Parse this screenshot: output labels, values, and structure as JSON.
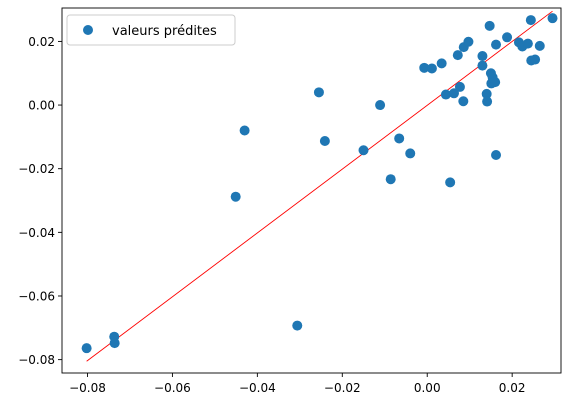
{
  "chart_data": {
    "type": "scatter",
    "title": "",
    "xlabel": "",
    "ylabel": "",
    "xlim": [
      -0.086,
      0.0315
    ],
    "ylim": [
      -0.0842,
      0.0305
    ],
    "xticks": [
      -0.08,
      -0.06,
      -0.04,
      -0.02,
      0.0,
      0.02
    ],
    "xtick_labels": [
      "−0.08",
      "−0.06",
      "−0.04",
      "−0.02",
      "0.00",
      "0.02"
    ],
    "yticks": [
      -0.08,
      -0.06,
      -0.04,
      -0.02,
      0.0,
      0.02
    ],
    "ytick_labels": [
      "−0.08",
      "−0.06",
      "−0.04",
      "−0.02",
      "0.00",
      "0.02"
    ],
    "grid": false,
    "legend": {
      "entries": [
        "valeurs prédites"
      ],
      "placement": "top-left"
    },
    "series": [
      {
        "name": "valeurs prédites",
        "type": "scatter",
        "color": "#1f77b4",
        "points": [
          [
            -0.0802,
            -0.0764
          ],
          [
            -0.0737,
            -0.0728
          ],
          [
            -0.0736,
            -0.0748
          ],
          [
            -0.0451,
            -0.0288
          ],
          [
            -0.043,
            -0.008
          ],
          [
            -0.0306,
            -0.0693
          ],
          [
            -0.0255,
            0.004
          ],
          [
            -0.0241,
            -0.0113
          ],
          [
            -0.015,
            -0.0142
          ],
          [
            -0.0111,
            0.0
          ],
          [
            -0.0086,
            -0.0233
          ],
          [
            -0.0066,
            -0.0105
          ],
          [
            -0.004,
            -0.0152
          ],
          [
            -0.0007,
            0.0117
          ],
          [
            0.0011,
            0.0115
          ],
          [
            0.0034,
            0.0131
          ],
          [
            0.0044,
            0.0033
          ],
          [
            0.0054,
            -0.0243
          ],
          [
            0.0063,
            0.0037
          ],
          [
            0.0072,
            0.0157
          ],
          [
            0.0077,
            0.0057
          ],
          [
            0.0086,
            0.0182
          ],
          [
            0.0085,
            0.0012
          ],
          [
            0.0097,
            0.0199
          ],
          [
            0.013,
            0.0154
          ],
          [
            0.013,
            0.0124
          ],
          [
            0.014,
            0.0035
          ],
          [
            0.0141,
            0.0011
          ],
          [
            0.0147,
            0.0249
          ],
          [
            0.015,
            0.01
          ],
          [
            0.0151,
            0.0068
          ],
          [
            0.0154,
            0.0087
          ],
          [
            0.016,
            0.0072
          ],
          [
            0.0162,
            0.019
          ],
          [
            0.0162,
            -0.0157
          ],
          [
            0.0188,
            0.0213
          ],
          [
            0.0216,
            0.0197
          ],
          [
            0.0224,
            0.0184
          ],
          [
            0.0237,
            0.0193
          ],
          [
            0.0244,
            0.0267
          ],
          [
            0.0245,
            0.014
          ],
          [
            0.0254,
            0.0143
          ],
          [
            0.0265,
            0.0186
          ],
          [
            0.0295,
            0.0273
          ]
        ]
      },
      {
        "name": "regression line",
        "type": "line",
        "color": "#ff0000",
        "points": [
          [
            -0.0802,
            -0.0805
          ],
          [
            0.0295,
            0.0295
          ]
        ]
      }
    ]
  }
}
